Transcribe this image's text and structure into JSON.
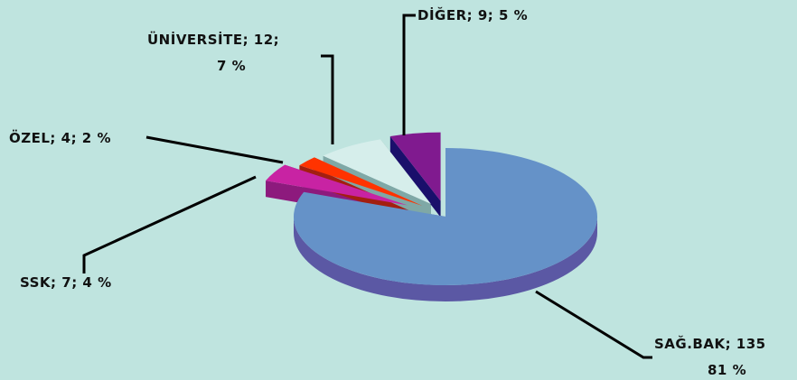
{
  "chart_data": {
    "type": "pie",
    "title": "",
    "slices": [
      {
        "label": "SAĞ.BAK",
        "value": 135,
        "percent": "81 %",
        "color": "#6592c8",
        "side": "#5b58a4"
      },
      {
        "label": "SSK",
        "value": 7,
        "percent": "4 %",
        "color": "#c823a3",
        "side": "#8d1a7d"
      },
      {
        "label": "ÖZEL",
        "value": 4,
        "percent": "2 %",
        "color": "#ff3300",
        "side": "#a31f10"
      },
      {
        "label": "ÜNİVERSİTE",
        "value": 12,
        "percent": "7 %",
        "color": "#d6eeeb",
        "side": "#7fa8a6"
      },
      {
        "label": "DİĞER",
        "value": 9,
        "percent": "5 %",
        "color": "#801a8f",
        "side": "#1a0f6b"
      }
    ],
    "labels": {
      "saglik_line1": "SAĞ.BAK; 135",
      "saglik_line2": "81 %",
      "ssk": "SSK; 7; 4 %",
      "ozel": "ÖZEL; 4; 2 %",
      "universite_line1": "ÜNİVERSİTE; 12;",
      "universite_line2": "7 %",
      "diger": "DİĞER; 9; 5 %"
    }
  }
}
